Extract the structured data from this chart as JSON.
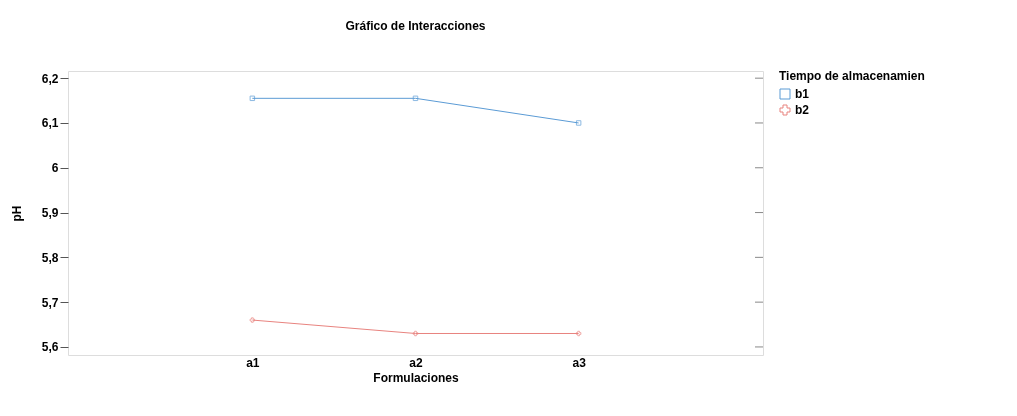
{
  "chart_data": {
    "type": "line",
    "title": "Gráfico de Interacciones",
    "xlabel": "Formulaciones",
    "ylabel": "pH",
    "legend_title": "Tiempo de almacenamien",
    "categories": [
      "a1",
      "a2",
      "a3"
    ],
    "series": [
      {
        "name": "b1",
        "color": "#5b9bd5",
        "marker": "square",
        "values": [
          6.155,
          6.155,
          6.1
        ]
      },
      {
        "name": "b2",
        "color": "#e8837f",
        "marker": "cross",
        "values": [
          5.66,
          5.63,
          5.63
        ]
      }
    ],
    "ylim": [
      5.582,
      6.216
    ],
    "yticks": [
      {
        "value": 5.6,
        "label": "5,6"
      },
      {
        "value": 5.7,
        "label": "5,7"
      },
      {
        "value": 5.8,
        "label": "5,8"
      },
      {
        "value": 5.9,
        "label": "5,9"
      },
      {
        "value": 6,
        "label": "6"
      },
      {
        "value": 6.1,
        "label": "6,1"
      },
      {
        "value": 6.2,
        "label": "6,2"
      }
    ],
    "grid": false,
    "legend": "top right",
    "line_style": "solid"
  }
}
